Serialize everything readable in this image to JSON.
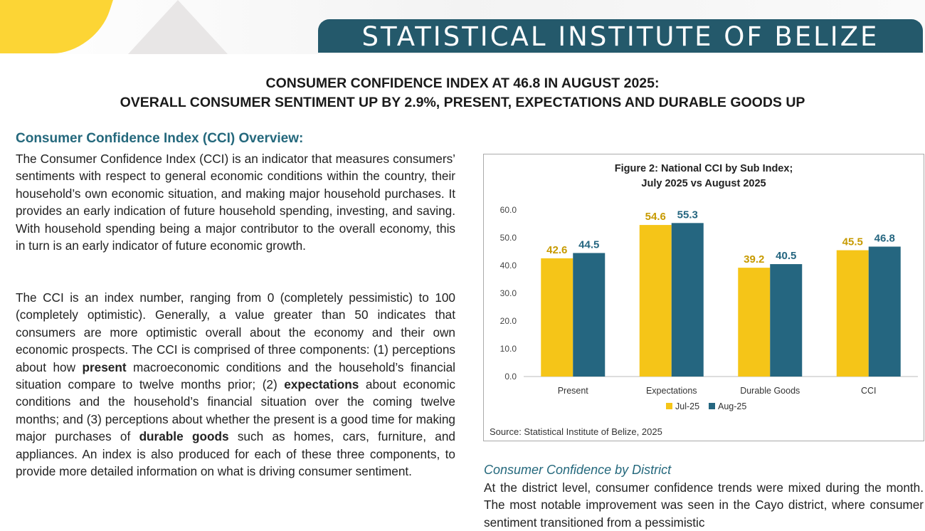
{
  "header": {
    "banner": "STATISTICAL INSTITUTE OF BELIZE"
  },
  "title": {
    "line1": "CONSUMER CONFIDENCE INDEX AT 46.8 IN AUGUST 2025:",
    "line2": "OVERALL CONSUMER SENTIMENT UP BY 2.9%, PRESENT, EXPECTATIONS AND DURABLE GOODS UP"
  },
  "overview": {
    "heading": "Consumer Confidence Index (CCI) Overview:",
    "p1": "The Consumer Confidence Index (CCI) is an indicator that measures consumers’ sentiments with respect to general economic conditions within the country, their household’s own economic situation, and making major household purchases. It provides an early indication of future household spending, investing, and saving. With household spending being a major contributor to the overall economy, this in turn is an early indicator of future economic growth.",
    "p2a": "The CCI is an index number, ranging from 0 (completely pessimistic) to 100 (completely optimistic). Generally, a value greater than 50 indicates that consumers are more optimistic overall about the economy and their own economic prospects. The CCI is comprised of three components: (1) perceptions about how ",
    "p2b": "present",
    "p2c": " macroeconomic conditions and the household’s financial situation compare to twelve months prior; (2) ",
    "p2d": "expectations",
    "p2e": " about economic conditions and the household’s financial situation over the coming twelve months; and (3) perceptions about whether the present is a good time for making major purchases of ",
    "p2f": "durable goods",
    "p2g": " such as homes, cars, furniture, and appliances. An index is also produced for each of these three components, to provide more detailed information on what is driving consumer sentiment."
  },
  "district": {
    "heading": "Consumer Confidence by District",
    "text": "At the district level, consumer confidence trends were mixed during the month. The most notable improvement was seen in the Cayo district, where consumer sentiment transitioned from a pessimistic"
  },
  "chart_data": {
    "type": "bar",
    "title": "Figure 2: National CCI by Sub Index;",
    "subtitle": "July 2025 vs August 2025",
    "categories": [
      "Present",
      "Expectations",
      "Durable Goods",
      "CCI"
    ],
    "series": [
      {
        "name": "Jul-25",
        "values": [
          42.6,
          54.6,
          39.2,
          45.5
        ],
        "color": "#f5c518"
      },
      {
        "name": "Aug-25",
        "values": [
          44.5,
          55.3,
          40.5,
          46.8
        ],
        "color": "#256680"
      }
    ],
    "yticks": [
      "0.0",
      "10.0",
      "20.0",
      "30.0",
      "40.0",
      "50.0",
      "60.0"
    ],
    "ylim": [
      0,
      60
    ],
    "grid": false,
    "legend": "bottom",
    "source": "Source: Statistical Institute of Belize, 2025"
  }
}
